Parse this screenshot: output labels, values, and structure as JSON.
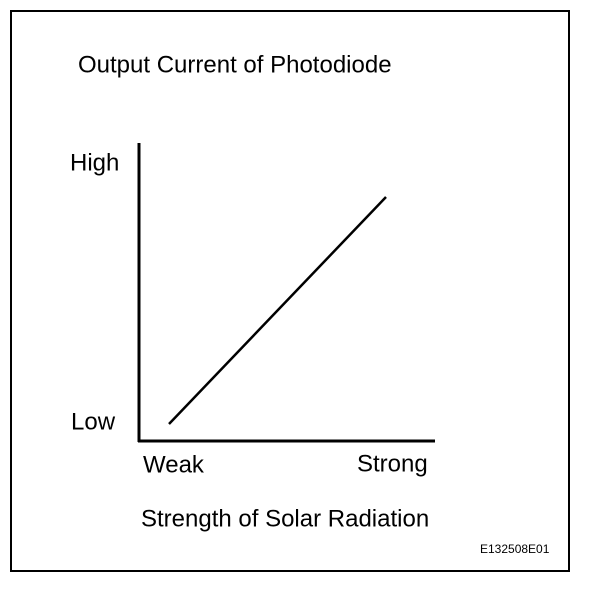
{
  "title": "Output Current of Photodiode",
  "y_axis": {
    "high": "High",
    "low": "Low"
  },
  "x_axis": {
    "weak": "Weak",
    "strong": "Strong",
    "label": "Strength of Solar Radiation"
  },
  "figure_code": "E132508E01"
}
